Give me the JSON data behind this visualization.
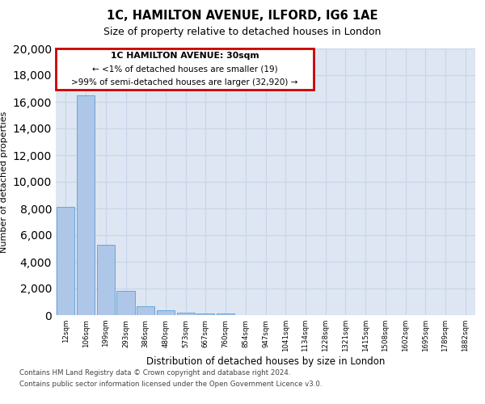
{
  "title1": "1C, HAMILTON AVENUE, ILFORD, IG6 1AE",
  "title2": "Size of property relative to detached houses in London",
  "xlabel": "Distribution of detached houses by size in London",
  "ylabel": "Number of detached properties",
  "bar_labels": [
    "12sqm",
    "106sqm",
    "199sqm",
    "293sqm",
    "386sqm",
    "480sqm",
    "573sqm",
    "667sqm",
    "760sqm",
    "854sqm",
    "947sqm",
    "1041sqm",
    "1134sqm",
    "1228sqm",
    "1321sqm",
    "1415sqm",
    "1508sqm",
    "1602sqm",
    "1695sqm",
    "1789sqm",
    "1882sqm"
  ],
  "bar_values": [
    8100,
    16500,
    5300,
    1800,
    650,
    350,
    200,
    150,
    130,
    0,
    0,
    0,
    0,
    0,
    0,
    0,
    0,
    0,
    0,
    0,
    0
  ],
  "bar_color": "#aec6e8",
  "bar_edge_color": "#5a9fd4",
  "annotation_title": "1C HAMILTON AVENUE: 30sqm",
  "annotation_line1": "← <1% of detached houses are smaller (19)",
  "annotation_line2": ">99% of semi-detached houses are larger (32,920) →",
  "annotation_box_color": "#cc0000",
  "annotation_bg": "#ffffff",
  "ylim": [
    0,
    20000
  ],
  "yticks": [
    0,
    2000,
    4000,
    6000,
    8000,
    10000,
    12000,
    14000,
    16000,
    18000,
    20000
  ],
  "grid_color": "#c8d4e8",
  "background_color": "#dde6f2",
  "footer1": "Contains HM Land Registry data © Crown copyright and database right 2024.",
  "footer2": "Contains public sector information licensed under the Open Government Licence v3.0."
}
